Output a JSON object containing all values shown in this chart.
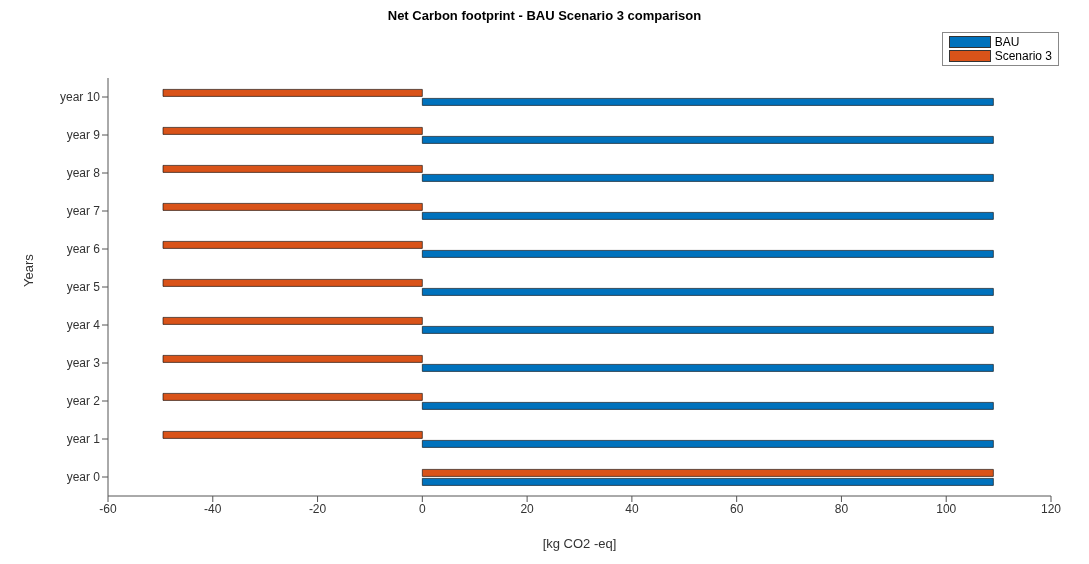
{
  "chart_data": {
    "type": "bar",
    "orientation": "horizontal",
    "title": "Net Carbon footprint - BAU Scenario 3 comparison",
    "xlabel": "[kg CO2 -eq]",
    "ylabel": "Years",
    "categories": [
      "year 10",
      "year 9",
      "year 8",
      "year 7",
      "year 6",
      "year 5",
      "year 4",
      "year 3",
      "year 2",
      "year 1",
      "year 0"
    ],
    "series": [
      {
        "name": "BAU",
        "color": "#0072bd",
        "values": [
          109,
          109,
          109,
          109,
          109,
          109,
          109,
          109,
          109,
          109,
          109
        ]
      },
      {
        "name": "Scenario 3",
        "color": "#d95319",
        "values": [
          -49.5,
          -49.5,
          -49.5,
          -49.5,
          -49.5,
          -49.5,
          -49.5,
          -49.5,
          -49.5,
          -49.5,
          109
        ]
      }
    ],
    "xlim": [
      -60,
      120
    ],
    "xticks": [
      -60,
      -40,
      -20,
      0,
      20,
      40,
      60,
      80,
      100,
      120
    ],
    "legend": "top right"
  }
}
